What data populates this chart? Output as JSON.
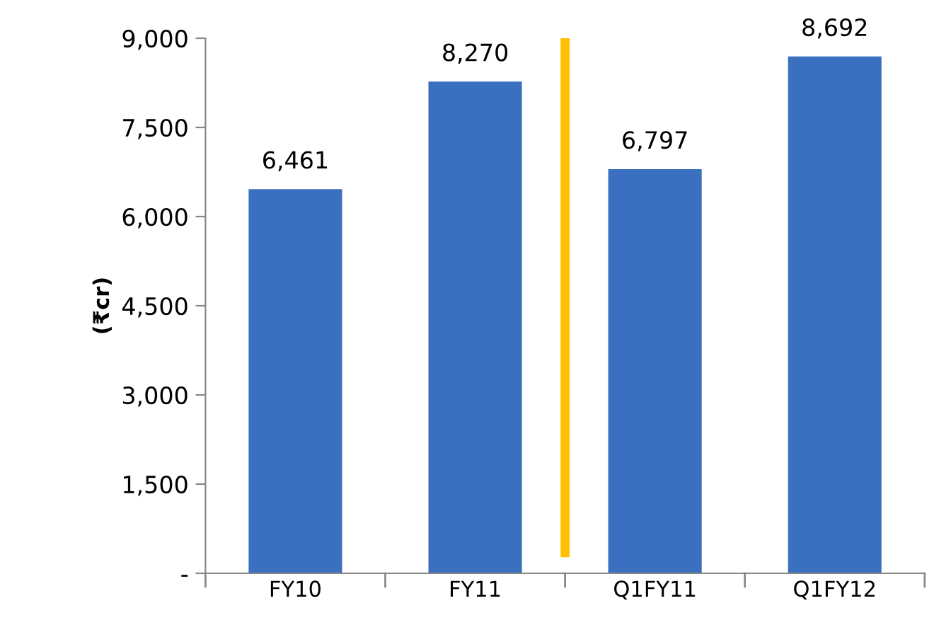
{
  "chart_data": {
    "type": "bar",
    "ylabel": "(₹cr)",
    "categories": [
      "FY10",
      "FY11",
      "Q1FY11",
      "Q1FY12"
    ],
    "values": [
      6461,
      8270,
      6797,
      8692
    ],
    "color": "#3a70bf",
    "value_labels": [
      "6,461",
      "8,270",
      "6,797",
      "8,692"
    ],
    "ylim": [
      0,
      9000
    ],
    "yticks": [
      {
        "value": 0,
        "label": "-"
      },
      {
        "value": 1500,
        "label": "1,500"
      },
      {
        "value": 3000,
        "label": "3,000"
      },
      {
        "value": 4500,
        "label": "4,500"
      },
      {
        "value": 6000,
        "label": "6,000"
      },
      {
        "value": 7500,
        "label": "7,500"
      },
      {
        "value": 9000,
        "label": "9,000"
      }
    ],
    "grid": false,
    "legend": false
  }
}
